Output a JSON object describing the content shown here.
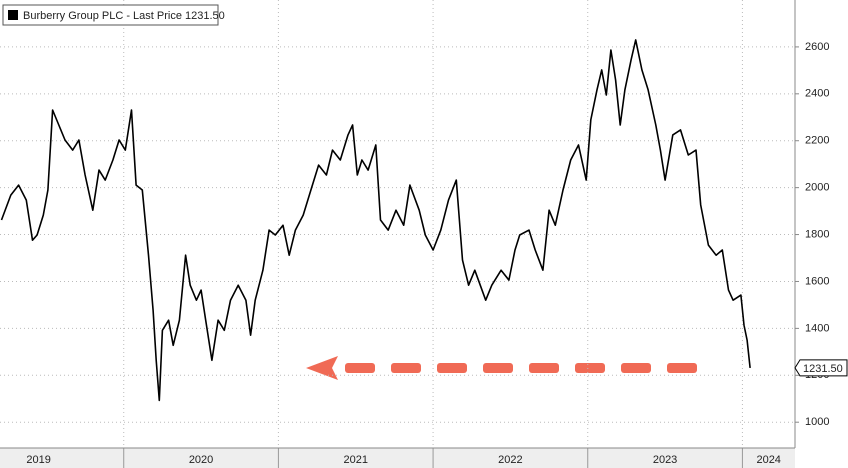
{
  "chart_data": {
    "type": "line",
    "x": [
      2019.21,
      2019.27,
      2019.32,
      2019.37,
      2019.41,
      2019.44,
      2019.48,
      2019.51,
      2019.54,
      2019.58,
      2019.62,
      2019.67,
      2019.71,
      2019.75,
      2019.8,
      2019.84,
      2019.88,
      2019.93,
      2019.97,
      2020.01,
      2020.05,
      2020.08,
      2020.12,
      2020.16,
      2020.19,
      2020.21,
      2020.23,
      2020.25,
      2020.29,
      2020.32,
      2020.36,
      2020.4,
      2020.43,
      2020.47,
      2020.5,
      2020.53,
      2020.57,
      2020.61,
      2020.65,
      2020.69,
      2020.74,
      2020.79,
      2020.82,
      2020.85,
      2020.9,
      2020.94,
      2020.98,
      2021.03,
      2021.07,
      2021.11,
      2021.16,
      2021.21,
      2021.26,
      2021.31,
      2021.35,
      2021.4,
      2021.45,
      2021.48,
      2021.51,
      2021.54,
      2021.58,
      2021.63,
      2021.66,
      2021.71,
      2021.76,
      2021.81,
      2021.85,
      2021.91,
      2021.95,
      2022.0,
      2022.05,
      2022.1,
      2022.15,
      2022.19,
      2022.23,
      2022.27,
      2022.34,
      2022.38,
      2022.44,
      2022.49,
      2022.53,
      2022.56,
      2022.62,
      2022.66,
      2022.71,
      2022.75,
      2022.79,
      2022.84,
      2022.89,
      2022.94,
      2022.99,
      2023.02,
      2023.06,
      2023.09,
      2023.12,
      2023.15,
      2023.18,
      2023.21,
      2023.24,
      2023.28,
      2023.31,
      2023.35,
      2023.39,
      2023.44,
      2023.47,
      2023.5,
      2023.55,
      2023.6,
      2023.65,
      2023.7,
      2023.73,
      2023.78,
      2023.83,
      2023.87,
      2023.91,
      2023.94,
      2023.99,
      2024.01,
      2024.03,
      2024.05
    ],
    "series": [
      {
        "name": "Burberry Group PLC - Last Price 1231.50",
        "color": "#000000",
        "values": [
          1862,
          1968,
          2011,
          1947,
          1776,
          1798,
          1883,
          1990,
          2331,
          2267,
          2203,
          2160,
          2203,
          2054,
          1904,
          2075,
          2032,
          2118,
          2203,
          2160,
          2331,
          2011,
          1990,
          1712,
          1477,
          1264,
          1093,
          1392,
          1435,
          1328,
          1435,
          1712,
          1584,
          1520,
          1563,
          1435,
          1264,
          1435,
          1392,
          1520,
          1584,
          1520,
          1371,
          1520,
          1648,
          1819,
          1798,
          1840,
          1712,
          1819,
          1883,
          1990,
          2096,
          2054,
          2160,
          2118,
          2225,
          2267,
          2054,
          2118,
          2075,
          2182,
          1862,
          1819,
          1904,
          1840,
          2011,
          1904,
          1798,
          1734,
          1819,
          1947,
          2032,
          1691,
          1584,
          1648,
          1520,
          1584,
          1648,
          1606,
          1734,
          1798,
          1819,
          1734,
          1648,
          1904,
          1840,
          1990,
          2118,
          2182,
          2032,
          2289,
          2417,
          2502,
          2395,
          2587,
          2459,
          2267,
          2417,
          2545,
          2630,
          2502,
          2417,
          2267,
          2160,
          2032,
          2225,
          2246,
          2139,
          2160,
          1926,
          1755,
          1712,
          1734,
          1563,
          1520,
          1542,
          1414,
          1350,
          1231.5
        ],
        "last_label": "1231.50"
      }
    ],
    "xlim": [
      2019.2,
      2024.34
    ],
    "xticks": [
      {
        "value": 2019.45,
        "label": "2019"
      },
      {
        "value": 2020.5,
        "label": "2020"
      },
      {
        "value": 2021.5,
        "label": "2021"
      },
      {
        "value": 2022.5,
        "label": "2022"
      },
      {
        "value": 2023.5,
        "label": "2023"
      },
      {
        "value": 2024.17,
        "label": "2024"
      }
    ],
    "xgrid": [
      2020,
      2021,
      2022,
      2023,
      2024
    ],
    "ylim": [
      890,
      2800
    ],
    "yticks": [
      1000,
      1200,
      1400,
      1600,
      1800,
      2000,
      2200,
      2400,
      2600
    ],
    "grid": true
  }
}
